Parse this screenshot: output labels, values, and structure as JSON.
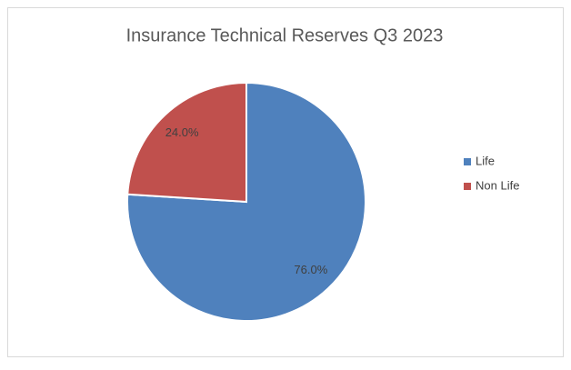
{
  "chart_data": {
    "type": "pie",
    "title": "Insurance Technical Reserves Q3 2023",
    "categories": [
      "Life",
      "Non Life"
    ],
    "values": [
      76.0,
      24.0
    ],
    "value_labels": [
      "76.0%",
      "24.0%"
    ],
    "colors": [
      "#4f81bd",
      "#c0504d"
    ],
    "legend": "right"
  }
}
